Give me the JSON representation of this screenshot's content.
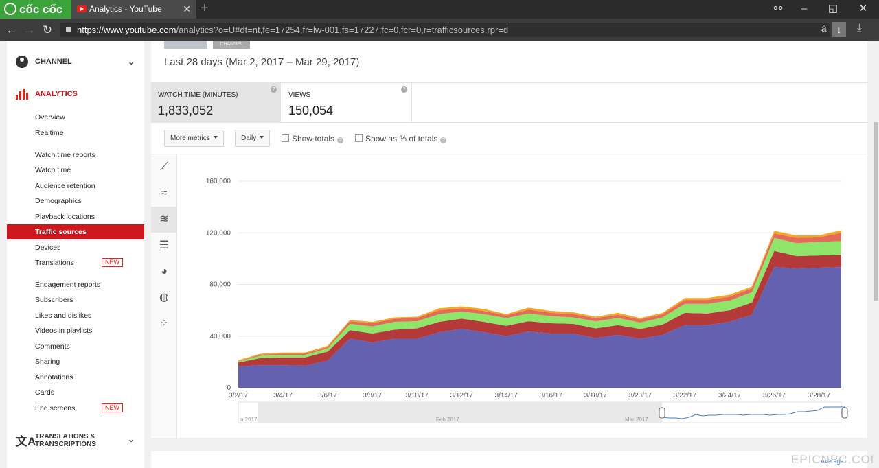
{
  "browser": {
    "brand": "cốc cốc",
    "tab_title": "Analytics - YouTube",
    "url_host": "https://www.youtube.com",
    "url_path": "/analytics?o=U#dt=nt,fe=17254,fr=lw-001,fs=17227;fc=0,fcr=0,r=trafficsources,rpr=d",
    "minimize": "–",
    "maximize": "◱",
    "close": "✕"
  },
  "sidebar": {
    "channel_label": "CHANNEL",
    "analytics_label": "ANALYTICS",
    "items": [
      {
        "label": "Overview"
      },
      {
        "label": "Realtime"
      },
      {
        "label": "Watch time reports"
      },
      {
        "label": "Watch time"
      },
      {
        "label": "Audience retention"
      },
      {
        "label": "Demographics"
      },
      {
        "label": "Playback locations"
      },
      {
        "label": "Traffic sources",
        "active": true
      },
      {
        "label": "Devices"
      },
      {
        "label": "Translations",
        "badge": "NEW"
      },
      {
        "label": "Engagement reports"
      },
      {
        "label": "Subscribers"
      },
      {
        "label": "Likes and dislikes"
      },
      {
        "label": "Videos in playlists"
      },
      {
        "label": "Comments"
      },
      {
        "label": "Sharing"
      },
      {
        "label": "Annotations"
      },
      {
        "label": "Cards"
      },
      {
        "label": "End screens",
        "badge": "NEW"
      }
    ],
    "translations_label_line1": "TRANSLATIONS &",
    "translations_label_line2": "TRANSCRIPTIONS"
  },
  "main": {
    "thumb_tag": "CHANNEL",
    "date_range": "Last 28 days (Mar 2, 2017 – Mar 29, 2017)",
    "metrics": [
      {
        "label": "WATCH TIME (MINUTES)",
        "value": "1,833,052",
        "selected": true
      },
      {
        "label": "VIEWS",
        "value": "150,054",
        "selected": false
      }
    ],
    "controls": {
      "more_metrics": "More metrics",
      "interval": "Daily",
      "show_totals": "Show totals",
      "show_pct": "Show as % of totals"
    },
    "timeline_labels": [
      "n 2017",
      "Feb 2017",
      "Mar 2017"
    ],
    "average_label": "Average",
    "watermark": "EPICNPC.COM"
  },
  "colors": {
    "accent": "#cc181e",
    "series": [
      "#6461b0",
      "#b43a3a",
      "#8fe46a",
      "#e26b5a",
      "#f5a623"
    ]
  },
  "chart_data": {
    "type": "area",
    "stacked": true,
    "x": [
      "3/2/17",
      "3/3/17",
      "3/4/17",
      "3/5/17",
      "3/6/17",
      "3/7/17",
      "3/8/17",
      "3/9/17",
      "3/10/17",
      "3/11/17",
      "3/12/17",
      "3/13/17",
      "3/14/17",
      "3/15/17",
      "3/16/17",
      "3/17/17",
      "3/18/17",
      "3/19/17",
      "3/20/17",
      "3/21/17",
      "3/22/17",
      "3/23/17",
      "3/24/17",
      "3/25/17",
      "3/26/17",
      "3/27/17",
      "3/28/17",
      "3/29/17"
    ],
    "tick_labels": [
      "3/2/17",
      "3/4/17",
      "3/6/17",
      "3/8/17",
      "3/10/17",
      "3/12/17",
      "3/14/17",
      "3/16/17",
      "3/18/17",
      "3/20/17",
      "3/22/17",
      "3/24/17",
      "3/26/17",
      "3/28/17"
    ],
    "yticks": [
      "0",
      "40,000",
      "80,000",
      "120,000",
      "160,000"
    ],
    "ylim": [
      0,
      160000
    ],
    "series": [
      {
        "values": [
          16500,
          17500,
          17500,
          17000,
          21000,
          38000,
          35000,
          38000,
          38000,
          43000,
          45500,
          43000,
          40000,
          43500,
          42000,
          42000,
          38500,
          41000,
          38000,
          41000,
          48500,
          48500,
          51000,
          56500,
          93500,
          92500,
          93000,
          93500
        ]
      },
      {
        "values": [
          3000,
          5500,
          6000,
          6500,
          7000,
          6500,
          7000,
          7000,
          8000,
          8000,
          8000,
          8000,
          8000,
          8000,
          8000,
          7500,
          7500,
          7500,
          7500,
          8000,
          9500,
          9000,
          9000,
          9500,
          12500,
          9500,
          9500,
          9500
        ]
      },
      {
        "values": [
          800,
          1800,
          2000,
          2000,
          2500,
          5000,
          5500,
          6000,
          5500,
          6000,
          5500,
          6000,
          6000,
          6000,
          5500,
          5000,
          5500,
          5500,
          5000,
          5500,
          7000,
          7500,
          7500,
          8000,
          10000,
          10000,
          10500,
          10500
        ]
      },
      {
        "values": [
          300,
          800,
          1000,
          1000,
          1000,
          2000,
          2500,
          2500,
          2500,
          3000,
          2500,
          2500,
          2000,
          3000,
          2500,
          2500,
          2500,
          2500,
          2500,
          2500,
          3000,
          3000,
          3000,
          3000,
          3500,
          4000,
          3500,
          6500
        ]
      },
      {
        "values": [
          700,
          800,
          800,
          800,
          1000,
          1000,
          1000,
          1000,
          1000,
          1500,
          1500,
          1500,
          1000,
          1500,
          1500,
          1500,
          1000,
          1500,
          1000,
          1000,
          1500,
          1500,
          1500,
          1500,
          2000,
          2000,
          1500,
          2000
        ]
      }
    ],
    "grid": true,
    "legend": "none"
  }
}
